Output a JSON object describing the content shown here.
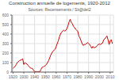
{
  "chart_data": {
    "type": "line",
    "title": "Construction annuelle de logements, 1920-2012",
    "subtitle": "Sources: Recensements / Sit@del2",
    "x": [
      1920,
      1921,
      1922,
      1923,
      1924,
      1925,
      1926,
      1927,
      1928,
      1929,
      1930,
      1931,
      1932,
      1933,
      1934,
      1935,
      1936,
      1937,
      1938,
      1939,
      1940,
      1941,
      1942,
      1943,
      1944,
      1945,
      1946,
      1947,
      1948,
      1949,
      1950,
      1951,
      1952,
      1953,
      1954,
      1955,
      1956,
      1957,
      1958,
      1959,
      1960,
      1961,
      1962,
      1963,
      1964,
      1965,
      1966,
      1967,
      1968,
      1969,
      1970,
      1971,
      1972,
      1973,
      1974,
      1975,
      1976,
      1977,
      1978,
      1979,
      1980,
      1981,
      1982,
      1983,
      1984,
      1985,
      1986,
      1987,
      1988,
      1989,
      1990,
      1991,
      1992,
      1993,
      1994,
      1995,
      1996,
      1997,
      1998,
      1999,
      2000,
      2001,
      2002,
      2003,
      2004,
      2005,
      2006,
      2007,
      2008,
      2009,
      2010,
      2011,
      2012
    ],
    "values": [
      40,
      50,
      60,
      80,
      100,
      110,
      120,
      125,
      130,
      140,
      80,
      100,
      90,
      85,
      70,
      55,
      45,
      40,
      38,
      20,
      5,
      5,
      5,
      5,
      5,
      5,
      30,
      50,
      55,
      60,
      70,
      80,
      100,
      120,
      150,
      180,
      200,
      220,
      230,
      240,
      270,
      300,
      330,
      370,
      400,
      420,
      430,
      440,
      430,
      440,
      460,
      490,
      530,
      555,
      520,
      510,
      480,
      470,
      450,
      440,
      430,
      380,
      360,
      330,
      300,
      280,
      290,
      290,
      300,
      310,
      300,
      290,
      270,
      250,
      270,
      255,
      260,
      265,
      280,
      290,
      295,
      290,
      300,
      305,
      340,
      350,
      365,
      380,
      340,
      290,
      330,
      340,
      300
    ],
    "color": "#cc0000",
    "xlim": [
      1919,
      2013
    ],
    "ylim": [
      0,
      600
    ],
    "xticks": [
      1920,
      1930,
      1940,
      1950,
      1960,
      1970,
      1980,
      1990,
      2000,
      2010
    ],
    "yticks": [
      0,
      100,
      200,
      300,
      400,
      500,
      600
    ],
    "grid": true
  }
}
